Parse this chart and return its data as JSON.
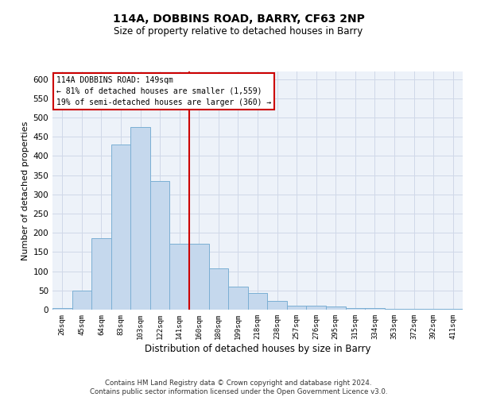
{
  "title": "114A, DOBBINS ROAD, BARRY, CF63 2NP",
  "subtitle": "Size of property relative to detached houses in Barry",
  "xlabel": "Distribution of detached houses by size in Barry",
  "ylabel": "Number of detached properties",
  "categories": [
    "26sqm",
    "45sqm",
    "64sqm",
    "83sqm",
    "103sqm",
    "122sqm",
    "141sqm",
    "160sqm",
    "180sqm",
    "199sqm",
    "218sqm",
    "238sqm",
    "257sqm",
    "276sqm",
    "295sqm",
    "315sqm",
    "334sqm",
    "353sqm",
    "372sqm",
    "392sqm",
    "411sqm"
  ],
  "values": [
    5,
    50,
    185,
    430,
    475,
    335,
    172,
    172,
    107,
    60,
    43,
    22,
    10,
    10,
    8,
    5,
    5,
    2,
    2,
    2,
    3
  ],
  "bar_color": "#c5d8ed",
  "bar_edge_color": "#7bafd4",
  "vline_x": 6.5,
  "annotation_text_lines": [
    "114A DOBBINS ROAD: 149sqm",
    "← 81% of detached houses are smaller (1,559)",
    "19% of semi-detached houses are larger (360) →"
  ],
  "annotation_box_color": "#ffffff",
  "annotation_box_edge_color": "#cc0000",
  "vline_color": "#cc0000",
  "grid_color": "#d0d8e8",
  "background_color": "#edf2f9",
  "footer_text": "Contains HM Land Registry data © Crown copyright and database right 2024.\nContains public sector information licensed under the Open Government Licence v3.0.",
  "ylim": [
    0,
    620
  ],
  "yticks": [
    0,
    50,
    100,
    150,
    200,
    250,
    300,
    350,
    400,
    450,
    500,
    550,
    600
  ]
}
